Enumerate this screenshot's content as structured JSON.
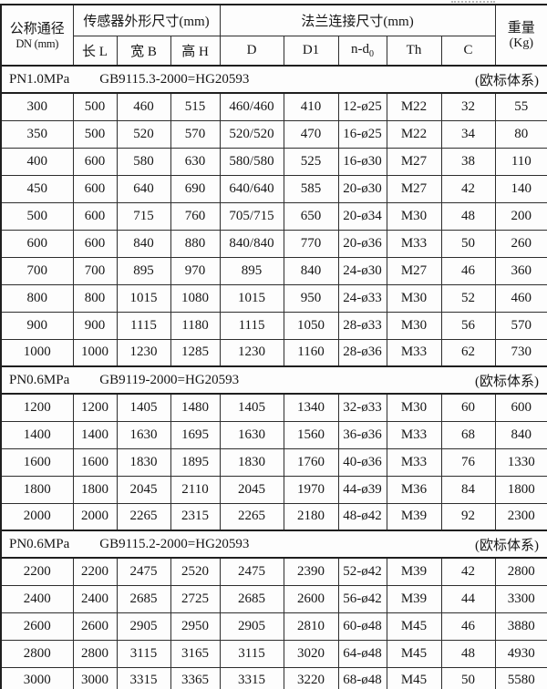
{
  "page": {
    "background_color": "#fdfdfd",
    "border_color": "#1f1f1f",
    "text_color": "#161616"
  },
  "table": {
    "column_keys": [
      "dn",
      "l",
      "b",
      "h",
      "d",
      "d1",
      "nd0",
      "th",
      "c",
      "kg"
    ],
    "header": {
      "dn_title": "公称通径",
      "dn_unit": "DN (mm)",
      "sensor_group": "传感器外形尺寸(mm)",
      "flange_group": "法兰连接尺寸(mm)",
      "weight_title": "重量",
      "weight_unit": "(Kg)",
      "sensor_cols": [
        "长 L",
        "宽 B",
        "高 H"
      ],
      "flange_cols": [
        "D",
        "D1",
        "n-d",
        "Th",
        "C"
      ],
      "nd0_subscript": "0"
    },
    "sections": [
      {
        "pressure": "PN1.0MPa",
        "standard": "GB9115.3-2000=HG20593",
        "note": "(欧标体系)",
        "rows": [
          [
            "300",
            "500",
            "460",
            "515",
            "460/460",
            "410",
            "12-ø25",
            "M22",
            "32",
            "55"
          ],
          [
            "350",
            "500",
            "520",
            "570",
            "520/520",
            "470",
            "16-ø25",
            "M22",
            "34",
            "80"
          ],
          [
            "400",
            "600",
            "580",
            "630",
            "580/580",
            "525",
            "16-ø30",
            "M27",
            "38",
            "110"
          ],
          [
            "450",
            "600",
            "640",
            "690",
            "640/640",
            "585",
            "20-ø30",
            "M27",
            "42",
            "140"
          ],
          [
            "500",
            "600",
            "715",
            "760",
            "705/715",
            "650",
            "20-ø34",
            "M30",
            "48",
            "200"
          ],
          [
            "600",
            "600",
            "840",
            "880",
            "840/840",
            "770",
            "20-ø36",
            "M33",
            "50",
            "260"
          ],
          [
            "700",
            "700",
            "895",
            "970",
            "895",
            "840",
            "24-ø30",
            "M27",
            "46",
            "360"
          ],
          [
            "800",
            "800",
            "1015",
            "1080",
            "1015",
            "950",
            "24-ø33",
            "M30",
            "52",
            "460"
          ],
          [
            "900",
            "900",
            "1115",
            "1180",
            "1115",
            "1050",
            "28-ø33",
            "M30",
            "56",
            "570"
          ],
          [
            "1000",
            "1000",
            "1230",
            "1285",
            "1230",
            "1160",
            "28-ø36",
            "M33",
            "62",
            "730"
          ]
        ]
      },
      {
        "pressure": "PN0.6MPa",
        "standard": "GB9119-2000=HG20593",
        "note": "(欧标体系)",
        "rows": [
          [
            "1200",
            "1200",
            "1405",
            "1480",
            "1405",
            "1340",
            "32-ø33",
            "M30",
            "60",
            "600"
          ],
          [
            "1400",
            "1400",
            "1630",
            "1695",
            "1630",
            "1560",
            "36-ø36",
            "M33",
            "68",
            "840"
          ],
          [
            "1600",
            "1600",
            "1830",
            "1895",
            "1830",
            "1760",
            "40-ø36",
            "M33",
            "76",
            "1330"
          ],
          [
            "1800",
            "1800",
            "2045",
            "2110",
            "2045",
            "1970",
            "44-ø39",
            "M36",
            "84",
            "1800"
          ],
          [
            "2000",
            "2000",
            "2265",
            "2315",
            "2265",
            "2180",
            "48-ø42",
            "M39",
            "92",
            "2300"
          ]
        ]
      },
      {
        "pressure": "PN0.6MPa",
        "standard": "GB9115.2-2000=HG20593",
        "note": "(欧标体系)",
        "rows": [
          [
            "2200",
            "2200",
            "2475",
            "2520",
            "2475",
            "2390",
            "52-ø42",
            "M39",
            "42",
            "2800"
          ],
          [
            "2400",
            "2400",
            "2685",
            "2725",
            "2685",
            "2600",
            "56-ø42",
            "M39",
            "44",
            "3300"
          ],
          [
            "2600",
            "2600",
            "2905",
            "2950",
            "2905",
            "2810",
            "60-ø48",
            "M45",
            "46",
            "3880"
          ],
          [
            "2800",
            "2800",
            "3115",
            "3165",
            "3115",
            "3020",
            "64-ø48",
            "M45",
            "48",
            "4930"
          ],
          [
            "3000",
            "3000",
            "3315",
            "3365",
            "3315",
            "3220",
            "68-ø48",
            "M45",
            "50",
            "5580"
          ]
        ]
      }
    ]
  }
}
